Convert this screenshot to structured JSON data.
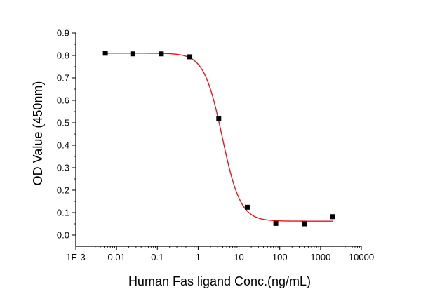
{
  "chart_data": {
    "type": "scatter",
    "title": "",
    "xlabel": "Human Fas ligand Conc.(ng/mL)",
    "ylabel": "OD Value (450nm)",
    "x_scale": "log",
    "xlim": [
      0.001,
      10000
    ],
    "ylim": [
      -0.05,
      0.9
    ],
    "x_ticks": [
      0.001,
      0.01,
      0.1,
      1,
      10,
      100,
      1000,
      10000
    ],
    "x_tick_labels": [
      "1E-3",
      "0.01",
      "0.1",
      "1",
      "10",
      "100",
      "1000",
      "10000"
    ],
    "y_ticks": [
      0.0,
      0.1,
      0.2,
      0.3,
      0.4,
      0.5,
      0.6,
      0.7,
      0.8,
      0.9
    ],
    "y_tick_labels": [
      "0.0",
      "0.1",
      "0.2",
      "0.3",
      "0.4",
      "0.5",
      "0.6",
      "0.7",
      "0.8",
      "0.9"
    ],
    "grid": false,
    "legend": "none",
    "series": [
      {
        "kind": "points",
        "color": "#000000",
        "marker": "square",
        "x": [
          0.0053,
          0.025,
          0.125,
          0.625,
          3.2,
          16,
          80,
          400,
          2000
        ],
        "y": [
          0.81,
          0.807,
          0.807,
          0.794,
          0.52,
          0.124,
          0.052,
          0.05,
          0.082
        ]
      },
      {
        "kind": "fit",
        "color": "#e8141c",
        "model": "four-parameter logistic",
        "x_range": [
          0.0053,
          2000
        ],
        "top": 0.81,
        "bottom": 0.062,
        "ec50": 3.9,
        "hill": 1.95
      }
    ]
  }
}
